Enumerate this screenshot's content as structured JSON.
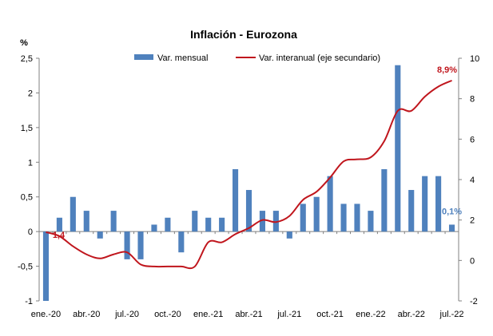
{
  "chart_data": {
    "type": "bar",
    "title": "Inflación - Eurozona",
    "y_unit_label": "%",
    "categories": [
      "ene.-20",
      "feb.-20",
      "mar.-20",
      "abr.-20",
      "may.-20",
      "jun.-20",
      "jul.-20",
      "ago.-20",
      "sep.-20",
      "oct.-20",
      "nov.-20",
      "dic.-20",
      "ene.-21",
      "feb.-21",
      "mar.-21",
      "abr.-21",
      "may.-21",
      "jun.-21",
      "jul.-21",
      "ago.-21",
      "sep.-21",
      "oct.-21",
      "nov.-21",
      "dic.-21",
      "ene.-22",
      "feb.-22",
      "mar.-22",
      "abr.-22",
      "may.-22",
      "jun.-22",
      "jul.-22"
    ],
    "x_tick_labels": [
      {
        "index": 0,
        "label": "ene.-20"
      },
      {
        "index": 3,
        "label": "abr.-20"
      },
      {
        "index": 6,
        "label": "jul.-20"
      },
      {
        "index": 9,
        "label": "oct.-20"
      },
      {
        "index": 12,
        "label": "ene.-21"
      },
      {
        "index": 15,
        "label": "abr.-21"
      },
      {
        "index": 18,
        "label": "jul.-21"
      },
      {
        "index": 21,
        "label": "oct.-21"
      },
      {
        "index": 24,
        "label": "ene.-22"
      },
      {
        "index": 27,
        "label": "abr.-22"
      },
      {
        "index": 30,
        "label": "jul.-22"
      }
    ],
    "series": [
      {
        "name": "Var. mensual",
        "type": "bar",
        "axis": "primary",
        "color": "#4F81BD",
        "values": [
          -1.0,
          0.2,
          0.5,
          0.3,
          -0.1,
          0.3,
          -0.4,
          -0.4,
          0.1,
          0.2,
          -0.3,
          0.3,
          0.2,
          0.2,
          0.9,
          0.6,
          0.3,
          0.3,
          -0.1,
          0.4,
          0.5,
          0.8,
          0.4,
          0.4,
          0.3,
          0.9,
          2.4,
          0.6,
          0.8,
          0.8,
          0.1
        ]
      },
      {
        "name": "Var. interanual (eje secundario)",
        "type": "line",
        "axis": "secondary",
        "color": "#C0161D",
        "values": [
          1.4,
          1.2,
          0.7,
          0.3,
          0.1,
          0.3,
          0.4,
          -0.2,
          -0.3,
          -0.3,
          -0.3,
          -0.3,
          0.9,
          0.9,
          1.3,
          1.6,
          2.0,
          1.9,
          2.2,
          3.0,
          3.4,
          4.1,
          4.9,
          5.0,
          5.1,
          5.9,
          7.4,
          7.4,
          8.1,
          8.6,
          8.9
        ]
      }
    ],
    "y_axis": {
      "min": -1,
      "max": 2.5,
      "ticks": [
        "-1",
        "-0,5",
        "0",
        "0,5",
        "1",
        "1,5",
        "2",
        "2,5"
      ],
      "tick_values": [
        -1,
        -0.5,
        0,
        0.5,
        1,
        1.5,
        2,
        2.5
      ]
    },
    "y2_axis": {
      "min": -2,
      "max": 10,
      "ticks": [
        "-2",
        "0",
        "2",
        "4",
        "6",
        "8",
        "10"
      ],
      "tick_values": [
        -2,
        0,
        2,
        4,
        6,
        8,
        10
      ]
    },
    "annotations": [
      {
        "text": "1,4",
        "series": 1,
        "index": 0,
        "color": "#C0161D"
      },
      {
        "text": "8,9%",
        "series": 1,
        "index": 30,
        "color": "#C0161D"
      },
      {
        "text": "0,1%",
        "series": 0,
        "index": 30,
        "color": "#4F81BD"
      }
    ],
    "legend": "top",
    "grid": false
  }
}
